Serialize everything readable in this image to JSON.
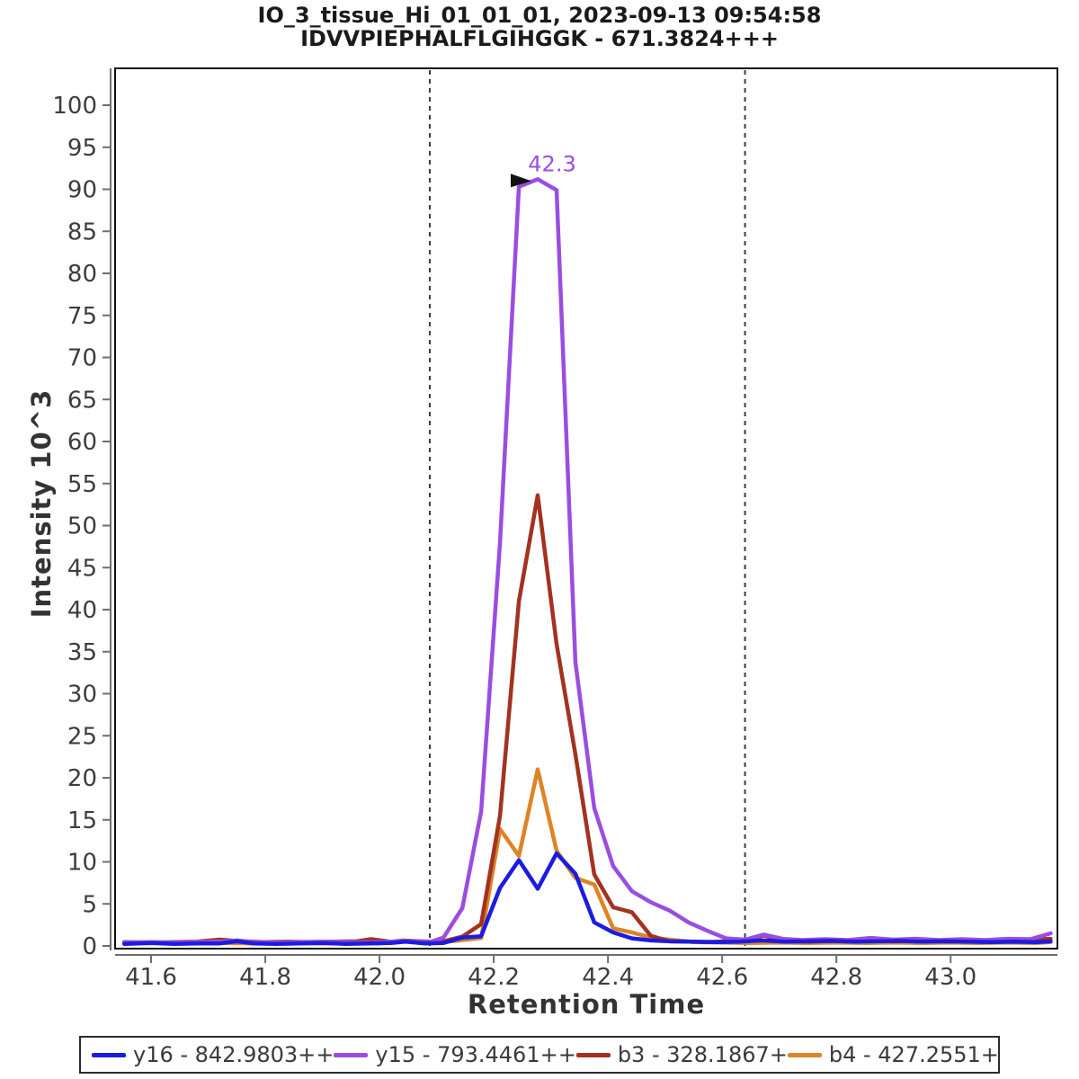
{
  "window": {
    "app_context": "chromatogram-view"
  },
  "chart_data": {
    "type": "line",
    "title": "IO_3_tissue_Hi_01_01_01, 2023-09-13 09:54:58",
    "subtitle": "IDVVPIEPHALFLGIHGGK - 671.3824+++",
    "xlabel": "Retention Time",
    "ylabel": "Intensity 10^3",
    "xlim": [
      41.537,
      43.187
    ],
    "ylim": [
      0,
      104.7
    ],
    "x_ticks": [
      41.6,
      41.8,
      42.0,
      42.2,
      42.4,
      42.6,
      42.8,
      43.0
    ],
    "y_ticks": [
      0,
      5,
      10,
      15,
      20,
      25,
      30,
      35,
      40,
      45,
      50,
      55,
      60,
      65,
      70,
      75,
      80,
      85,
      90,
      95,
      100
    ],
    "grid": false,
    "legend_position": "bottom",
    "boundaries": {
      "style": "dashed",
      "x_values": [
        42.088,
        42.64
      ]
    },
    "annotation": {
      "label": "42.3",
      "rt": 42.277,
      "value": 91.2,
      "color": "#9b4de0",
      "arrow_color": "#111111"
    },
    "series": [
      {
        "id": "y16",
        "name": "y16 - 842.9803++",
        "color": "#1c1ce0",
        "points": [
          [
            41.553,
            0.25
          ],
          [
            41.6,
            0.35
          ],
          [
            41.64,
            0.25
          ],
          [
            41.68,
            0.3
          ],
          [
            41.72,
            0.3
          ],
          [
            41.75,
            0.55
          ],
          [
            41.78,
            0.3
          ],
          [
            41.82,
            0.25
          ],
          [
            41.86,
            0.3
          ],
          [
            41.9,
            0.35
          ],
          [
            41.94,
            0.25
          ],
          [
            41.98,
            0.3
          ],
          [
            42.02,
            0.35
          ],
          [
            42.045,
            0.5
          ],
          [
            42.08,
            0.3
          ],
          [
            42.112,
            0.35
          ],
          [
            42.145,
            1.0
          ],
          [
            42.178,
            1.15
          ],
          [
            42.211,
            6.9
          ],
          [
            42.244,
            10.2
          ],
          [
            42.277,
            6.8
          ],
          [
            42.31,
            11.0
          ],
          [
            42.343,
            8.6
          ],
          [
            42.376,
            2.8
          ],
          [
            42.409,
            1.6
          ],
          [
            42.442,
            0.9
          ],
          [
            42.475,
            0.65
          ],
          [
            42.51,
            0.55
          ],
          [
            42.55,
            0.5
          ],
          [
            42.59,
            0.45
          ],
          [
            42.63,
            0.5
          ],
          [
            42.67,
            0.65
          ],
          [
            42.71,
            0.5
          ],
          [
            42.75,
            0.55
          ],
          [
            42.79,
            0.6
          ],
          [
            42.83,
            0.5
          ],
          [
            42.87,
            0.55
          ],
          [
            42.91,
            0.6
          ],
          [
            42.95,
            0.5
          ],
          [
            42.99,
            0.55
          ],
          [
            43.03,
            0.5
          ],
          [
            43.07,
            0.45
          ],
          [
            43.11,
            0.5
          ],
          [
            43.15,
            0.45
          ],
          [
            43.175,
            0.55
          ]
        ]
      },
      {
        "id": "y15",
        "name": "y15 - 793.4461++",
        "color": "#9b4de0",
        "points": [
          [
            41.553,
            0.4
          ],
          [
            41.6,
            0.45
          ],
          [
            41.64,
            0.4
          ],
          [
            41.68,
            0.45
          ],
          [
            41.72,
            0.5
          ],
          [
            41.75,
            0.65
          ],
          [
            41.78,
            0.45
          ],
          [
            41.82,
            0.4
          ],
          [
            41.86,
            0.45
          ],
          [
            41.9,
            0.5
          ],
          [
            41.94,
            0.45
          ],
          [
            41.98,
            0.4
          ],
          [
            42.02,
            0.5
          ],
          [
            42.05,
            0.55
          ],
          [
            42.088,
            0.45
          ],
          [
            42.112,
            1.0
          ],
          [
            42.145,
            4.5
          ],
          [
            42.178,
            16.0
          ],
          [
            42.211,
            48.0
          ],
          [
            42.244,
            90.3
          ],
          [
            42.277,
            91.2
          ],
          [
            42.31,
            89.9
          ],
          [
            42.343,
            33.8
          ],
          [
            42.376,
            16.4
          ],
          [
            42.409,
            9.5
          ],
          [
            42.442,
            6.5
          ],
          [
            42.475,
            5.2
          ],
          [
            42.508,
            4.2
          ],
          [
            42.541,
            2.8
          ],
          [
            42.574,
            1.8
          ],
          [
            42.607,
            0.9
          ],
          [
            42.64,
            0.75
          ],
          [
            42.673,
            1.35
          ],
          [
            42.706,
            0.85
          ],
          [
            42.74,
            0.7
          ],
          [
            42.78,
            0.8
          ],
          [
            42.82,
            0.7
          ],
          [
            42.86,
            0.95
          ],
          [
            42.9,
            0.75
          ],
          [
            42.94,
            0.85
          ],
          [
            42.98,
            0.7
          ],
          [
            43.02,
            0.8
          ],
          [
            43.06,
            0.7
          ],
          [
            43.1,
            0.85
          ],
          [
            43.14,
            0.8
          ],
          [
            43.175,
            1.5
          ]
        ]
      },
      {
        "id": "b3",
        "name": "b3 - 328.1867+",
        "color": "#a23320",
        "points": [
          [
            41.553,
            0.45
          ],
          [
            41.6,
            0.4
          ],
          [
            41.64,
            0.45
          ],
          [
            41.68,
            0.5
          ],
          [
            41.72,
            0.75
          ],
          [
            41.76,
            0.55
          ],
          [
            41.8,
            0.45
          ],
          [
            41.84,
            0.5
          ],
          [
            41.88,
            0.45
          ],
          [
            41.92,
            0.5
          ],
          [
            41.96,
            0.55
          ],
          [
            41.985,
            0.8
          ],
          [
            42.02,
            0.5
          ],
          [
            42.05,
            0.6
          ],
          [
            42.088,
            0.5
          ],
          [
            42.112,
            0.55
          ],
          [
            42.145,
            1.1
          ],
          [
            42.178,
            2.6
          ],
          [
            42.211,
            15.5
          ],
          [
            42.244,
            41.0
          ],
          [
            42.277,
            53.6
          ],
          [
            42.31,
            35.9
          ],
          [
            42.343,
            22.8
          ],
          [
            42.376,
            8.5
          ],
          [
            42.409,
            4.6
          ],
          [
            42.442,
            4.0
          ],
          [
            42.475,
            1.2
          ],
          [
            42.508,
            0.55
          ],
          [
            42.541,
            0.5
          ],
          [
            42.574,
            0.45
          ],
          [
            42.607,
            0.55
          ],
          [
            42.64,
            0.6
          ],
          [
            42.673,
            1.25
          ],
          [
            42.706,
            0.65
          ],
          [
            42.75,
            0.5
          ],
          [
            42.8,
            0.6
          ],
          [
            42.85,
            0.75
          ],
          [
            42.9,
            0.55
          ],
          [
            42.95,
            0.6
          ],
          [
            43.0,
            0.55
          ],
          [
            43.05,
            0.6
          ],
          [
            43.1,
            0.65
          ],
          [
            43.14,
            0.75
          ],
          [
            43.175,
            0.85
          ]
        ]
      },
      {
        "id": "b4",
        "name": "b4 - 427.2551+",
        "color": "#dd8427",
        "points": [
          [
            41.553,
            0.3
          ],
          [
            41.6,
            0.35
          ],
          [
            41.66,
            0.3
          ],
          [
            41.72,
            0.35
          ],
          [
            41.78,
            0.3
          ],
          [
            41.84,
            0.35
          ],
          [
            41.9,
            0.3
          ],
          [
            41.96,
            0.35
          ],
          [
            42.0,
            0.3
          ],
          [
            42.04,
            0.65
          ],
          [
            42.088,
            0.4
          ],
          [
            42.112,
            0.45
          ],
          [
            42.145,
            0.7
          ],
          [
            42.178,
            0.95
          ],
          [
            42.211,
            13.9
          ],
          [
            42.244,
            10.7
          ],
          [
            42.277,
            21.0
          ],
          [
            42.31,
            11.3
          ],
          [
            42.343,
            8.1
          ],
          [
            42.376,
            7.3
          ],
          [
            42.409,
            2.1
          ],
          [
            42.442,
            1.6
          ],
          [
            42.475,
            1.0
          ],
          [
            42.508,
            0.75
          ],
          [
            42.55,
            0.45
          ],
          [
            42.6,
            0.4
          ],
          [
            42.65,
            0.35
          ],
          [
            42.7,
            0.4
          ],
          [
            42.75,
            0.35
          ],
          [
            42.8,
            0.4
          ],
          [
            42.85,
            0.35
          ],
          [
            42.9,
            0.4
          ],
          [
            42.95,
            0.35
          ],
          [
            43.0,
            0.4
          ],
          [
            43.05,
            0.35
          ],
          [
            43.1,
            0.4
          ],
          [
            43.15,
            0.35
          ],
          [
            43.175,
            0.45
          ]
        ]
      }
    ],
    "y_unit_note": "intensity values shown in thousands (10^3)",
    "axis_color": "#6e6e6e",
    "tick_label_color": "#3d3d3d",
    "border_color": "#101010",
    "boundary_color": "#3c3c3c"
  }
}
